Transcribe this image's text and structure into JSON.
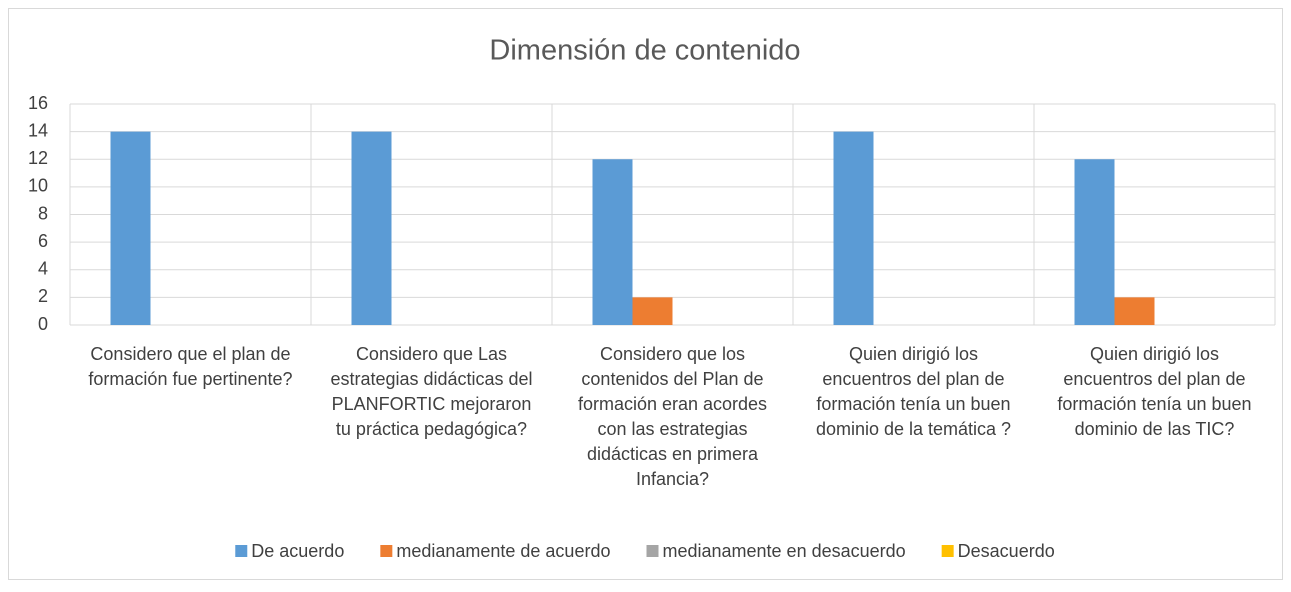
{
  "chart_data": {
    "type": "bar",
    "title": "Dimensión de contenido",
    "categories": [
      "Considero que el plan de formación fue pertinente?",
      "Considero que Las estrategias didácticas del PLANFORTIC mejoraron tu práctica pedagógica?",
      "Considero que los contenidos del Plan de formación eran acordes con las estrategias didácticas en primera Infancia?",
      "Quien dirigió los encuentros del plan de formación tenía un buen dominio de la temática ?",
      "Quien dirigió los encuentros del plan de formación tenía un buen dominio de las TIC?"
    ],
    "series": [
      {
        "name": "De acuerdo",
        "color": "#5b9bd5",
        "values": [
          14,
          14,
          12,
          14,
          12
        ]
      },
      {
        "name": "medianamente de acuerdo",
        "color": "#ed7d31",
        "values": [
          0,
          0,
          2,
          0,
          2
        ]
      },
      {
        "name": "medianamente en desacuerdo",
        "color": "#a5a5a5",
        "values": [
          0,
          0,
          0,
          0,
          0
        ]
      },
      {
        "name": "Desacuerdo",
        "color": "#ffc000",
        "values": [
          0,
          0,
          0,
          0,
          0
        ]
      }
    ],
    "ylim": [
      0,
      16
    ],
    "yticks": [
      0,
      2,
      4,
      6,
      8,
      10,
      12,
      14,
      16
    ],
    "grid": true,
    "legend": "bottom"
  }
}
